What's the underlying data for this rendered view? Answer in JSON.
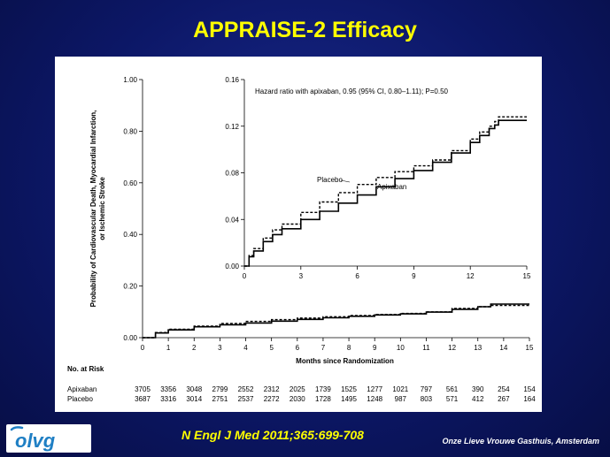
{
  "slide": {
    "title": "APPRAISE-2 Efficacy",
    "citation": "N Engl J Med 2011;365:699-708",
    "hospital": "Onze Lieve Vrouwe Gasthuis, Amsterdam",
    "logo_text": "olvg"
  },
  "colors": {
    "title": "#ffff00",
    "background": "#0c1766",
    "logo_blue": "#1f7fc4"
  },
  "chart_data": [
    {
      "id": "main",
      "type": "line",
      "xlabel": "Months since Randomization",
      "ylabel_lines": [
        "Probability of Cardiovascular Death, Myocardial Infarction,",
        "or Ischemic Stroke"
      ],
      "xlim": [
        0,
        15
      ],
      "ylim": [
        0,
        1
      ],
      "x_ticks": [
        "0",
        "1",
        "2",
        "3",
        "4",
        "5",
        "6",
        "7",
        "8",
        "9",
        "10",
        "11",
        "12",
        "13",
        "14",
        "15"
      ],
      "y_ticks": [
        "0.00",
        "0.20",
        "0.40",
        "0.60",
        "0.80",
        "1.00"
      ],
      "series": [
        {
          "name": "Apixaban",
          "style": "solid",
          "x": [
            0,
            0.5,
            1,
            2,
            3,
            4,
            5,
            6,
            7,
            8,
            9,
            10,
            11,
            12,
            13,
            13.5,
            14,
            15
          ],
          "y": [
            0,
            0.018,
            0.03,
            0.042,
            0.05,
            0.057,
            0.064,
            0.071,
            0.077,
            0.083,
            0.088,
            0.092,
            0.099,
            0.11,
            0.12,
            0.13,
            0.13,
            0.13
          ]
        },
        {
          "name": "Placebo",
          "style": "dashed",
          "x": [
            0,
            0.5,
            1,
            2,
            3,
            4,
            5,
            6,
            7,
            8,
            9,
            10,
            11,
            12,
            13,
            13.5,
            14,
            15
          ],
          "y": [
            0,
            0.02,
            0.033,
            0.045,
            0.055,
            0.063,
            0.07,
            0.076,
            0.081,
            0.086,
            0.09,
            0.094,
            0.1,
            0.113,
            0.12,
            0.125,
            0.125,
            0.125
          ]
        }
      ]
    },
    {
      "id": "inset",
      "type": "line",
      "annotation": "Hazard ratio with apixaban, 0.95 (95% CI, 0.80–1.11); P=0.50",
      "xlim": [
        0,
        15
      ],
      "ylim": [
        0,
        0.16
      ],
      "x_ticks": [
        "0",
        "3",
        "6",
        "9",
        "12",
        "15"
      ],
      "y_ticks": [
        "0.00",
        "0.04",
        "0.08",
        "0.12",
        "0.16"
      ],
      "series_labels": [
        "Placebo",
        "Apixaban"
      ],
      "series": [
        {
          "name": "Apixaban",
          "style": "solid",
          "x": [
            0,
            0.25,
            0.5,
            1,
            1.5,
            2,
            3,
            4,
            5,
            6,
            7,
            8,
            9,
            10,
            11,
            12,
            12.5,
            13,
            13.3,
            13.5,
            15
          ],
          "y": [
            0,
            0.008,
            0.013,
            0.021,
            0.027,
            0.032,
            0.04,
            0.047,
            0.054,
            0.061,
            0.068,
            0.075,
            0.082,
            0.089,
            0.097,
            0.106,
            0.112,
            0.118,
            0.121,
            0.125,
            0.125
          ]
        },
        {
          "name": "Placebo",
          "style": "dashed",
          "x": [
            0,
            0.25,
            0.5,
            1,
            1.5,
            2,
            3,
            4,
            5,
            6,
            7,
            8,
            9,
            10,
            11,
            12,
            12.5,
            13,
            13.3,
            13.5,
            15
          ],
          "y": [
            0,
            0.009,
            0.015,
            0.024,
            0.031,
            0.036,
            0.046,
            0.055,
            0.063,
            0.07,
            0.076,
            0.081,
            0.086,
            0.091,
            0.099,
            0.109,
            0.115,
            0.12,
            0.124,
            0.128,
            0.128
          ]
        }
      ]
    }
  ],
  "risk_table": {
    "title": "No. at Risk",
    "rows": [
      {
        "label": "Apixaban",
        "values": [
          "3705",
          "3356",
          "3048",
          "2799",
          "2552",
          "2312",
          "2025",
          "1739",
          "1525",
          "1277",
          "1021",
          "797",
          "561",
          "390",
          "254",
          "154"
        ]
      },
      {
        "label": "Placebo",
        "values": [
          "3687",
          "3316",
          "3014",
          "2751",
          "2537",
          "2272",
          "2030",
          "1728",
          "1495",
          "1248",
          "987",
          "803",
          "571",
          "412",
          "267",
          "164"
        ]
      }
    ]
  }
}
